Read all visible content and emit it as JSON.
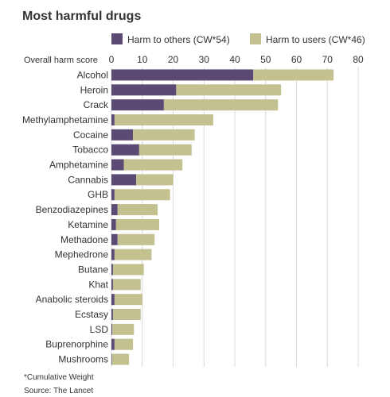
{
  "chart_data": {
    "type": "bar",
    "orientation": "horizontal",
    "stacked": true,
    "title": "Most harmful drugs",
    "ylabel": "Overall harm score",
    "xlim": [
      0,
      80
    ],
    "xticks": [
      0,
      10,
      20,
      30,
      40,
      50,
      60,
      70,
      80
    ],
    "grid": true,
    "legend_position": "top",
    "categories": [
      "Alcohol",
      "Heroin",
      "Crack",
      "Methylamphetamine",
      "Cocaine",
      "Tobacco",
      "Amphetamine",
      "Cannabis",
      "GHB",
      "Benzodiazepines",
      "Ketamine",
      "Methadone",
      "Mephedrone",
      "Butane",
      "Khat",
      "Anabolic steroids",
      "Ecstasy",
      "LSD",
      "Buprenorphine",
      "Mushrooms"
    ],
    "series": [
      {
        "name": "Harm to others (CW*54)",
        "color": "#5b4a74",
        "values": [
          46,
          21,
          17,
          1,
          7,
          9,
          4,
          8,
          1,
          2,
          1.5,
          2,
          1,
          0.5,
          0.5,
          1,
          0.5,
          0.3,
          1,
          0.2
        ]
      },
      {
        "name": "Harm to users (CW*46)",
        "color": "#c3c190",
        "values": [
          26,
          34,
          37,
          32,
          20,
          17,
          19,
          12,
          18,
          13,
          14,
          12,
          12,
          10,
          9,
          9,
          9,
          7,
          6,
          5.5
        ]
      }
    ],
    "footnote": "*Cumulative Weight",
    "source": "Source: The Lancet"
  }
}
